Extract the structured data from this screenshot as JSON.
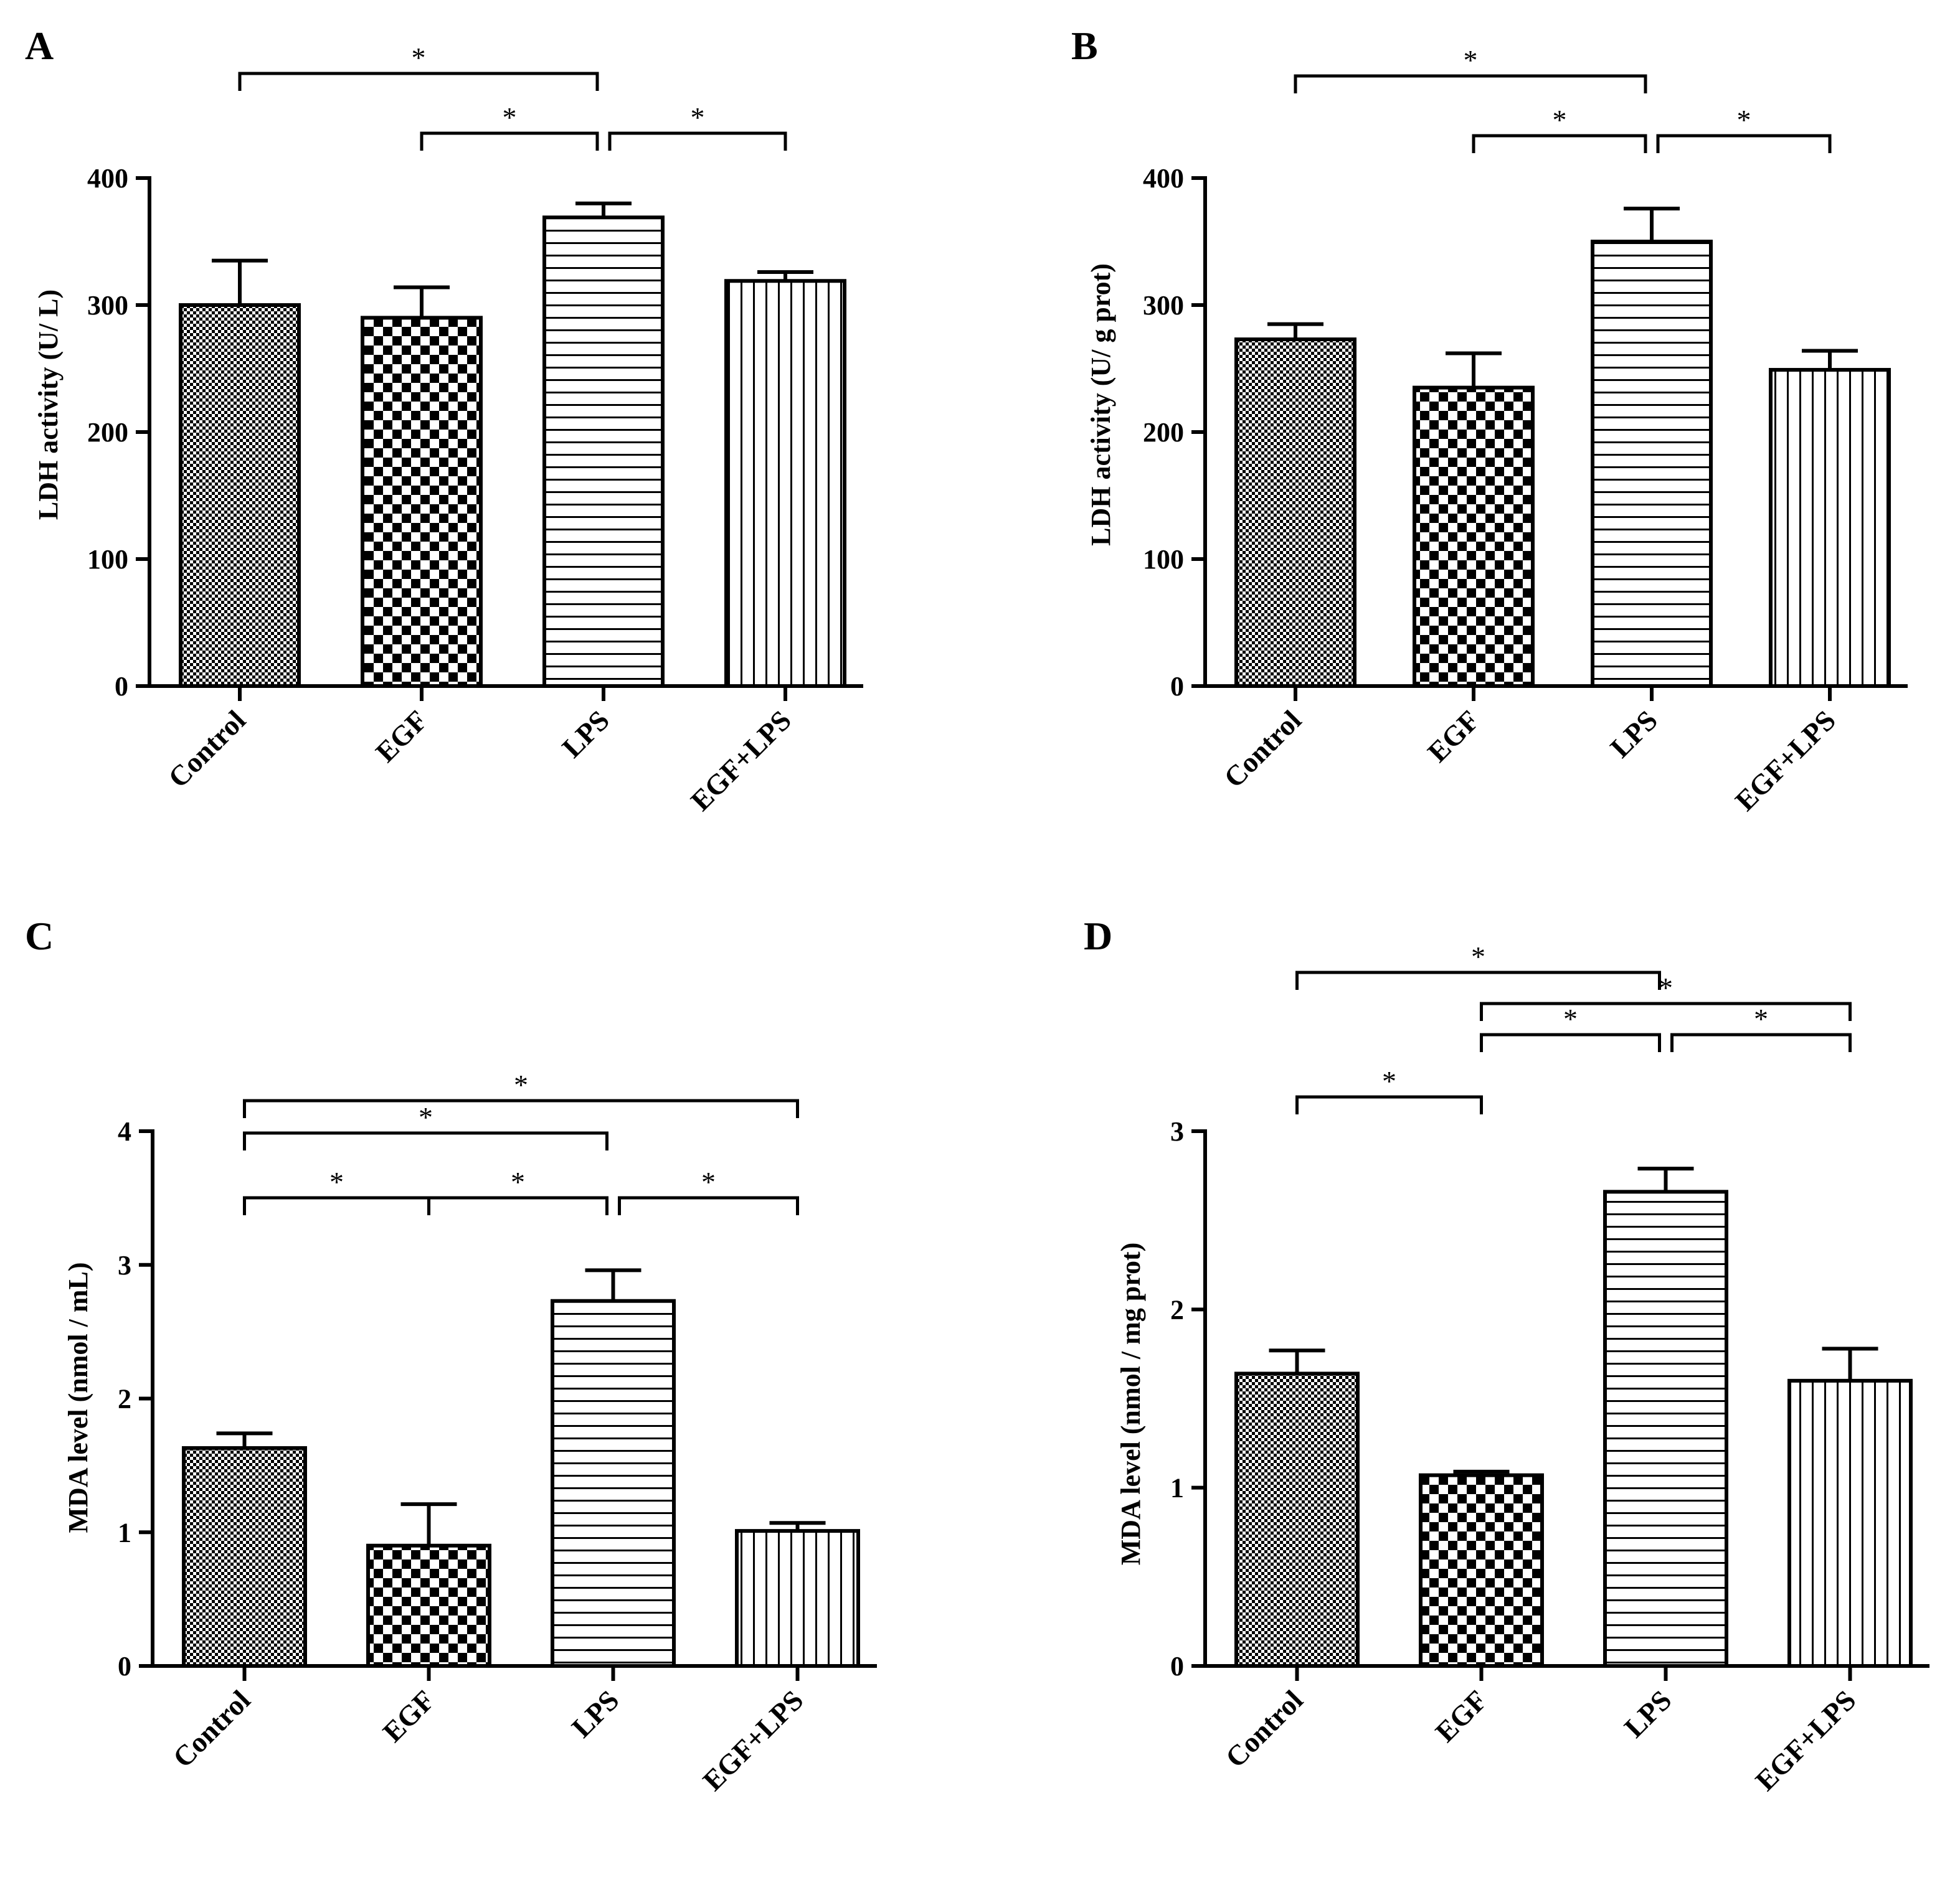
{
  "figure": {
    "panels": [
      {
        "id": "A",
        "label": "A"
      },
      {
        "id": "B",
        "label": "B"
      },
      {
        "id": "C",
        "label": "C"
      },
      {
        "id": "D",
        "label": "D"
      }
    ]
  },
  "chart_data": [
    {
      "panel": "A",
      "type": "bar",
      "title": "",
      "xlabel": "",
      "ylabel": "LDH activity (U/ L)",
      "categories": [
        "Control",
        "EGF",
        "LPS",
        "EGF+LPS"
      ],
      "values": [
        300,
        290,
        369,
        319
      ],
      "errors": [
        35,
        24,
        11,
        7
      ],
      "patterns": [
        "fine-check",
        "checker",
        "horizontal",
        "vertical"
      ],
      "ylim": [
        0,
        400
      ],
      "yticks": [
        0,
        100,
        200,
        300,
        400
      ],
      "ytick_labels": [
        "0",
        "100",
        "200",
        "300",
        "400"
      ],
      "significance": [
        {
          "from": 0,
          "to": 2,
          "label": "*",
          "level": 3
        },
        {
          "from": 1,
          "to": 2,
          "label": "*",
          "level": 1
        },
        {
          "from": 2,
          "to": 3,
          "label": "*",
          "level": 1
        }
      ]
    },
    {
      "panel": "B",
      "type": "bar",
      "title": "",
      "xlabel": "",
      "ylabel": "LDH activity (U/ g prot)",
      "categories": [
        "Control",
        "EGF",
        "LPS",
        "EGF+LPS"
      ],
      "values": [
        273,
        235,
        350,
        249
      ],
      "errors": [
        12,
        27,
        26,
        15
      ],
      "patterns": [
        "fine-check",
        "checker",
        "horizontal",
        "vertical"
      ],
      "ylim": [
        0,
        400
      ],
      "yticks": [
        0,
        100,
        200,
        300,
        400
      ],
      "ytick_labels": [
        "0",
        "100",
        "200",
        "300",
        "400"
      ],
      "significance": [
        {
          "from": 0,
          "to": 2,
          "label": "*",
          "level": 3
        },
        {
          "from": 1,
          "to": 2,
          "label": "*",
          "level": 1
        },
        {
          "from": 2,
          "to": 3,
          "label": "*",
          "level": 1
        }
      ]
    },
    {
      "panel": "C",
      "type": "bar",
      "title": "",
      "xlabel": "",
      "ylabel": "MDA level (nmol / mL)",
      "categories": [
        "Control",
        "EGF",
        "LPS",
        "EGF+LPS"
      ],
      "values": [
        1.63,
        0.9,
        2.73,
        1.01
      ],
      "errors": [
        0.11,
        0.31,
        0.23,
        0.06
      ],
      "patterns": [
        "fine-check",
        "checker",
        "horizontal",
        "vertical"
      ],
      "ylim": [
        0,
        4
      ],
      "yticks": [
        0,
        1,
        2,
        3,
        4
      ],
      "ytick_labels": [
        "0",
        "1",
        "2",
        "3",
        "4"
      ],
      "significance": [
        {
          "from": 0,
          "to": 3,
          "label": "*",
          "level": 4
        },
        {
          "from": 0,
          "to": 2,
          "label": "*",
          "level": 3
        },
        {
          "from": 1,
          "to": 2,
          "label": "*",
          "level": 1
        },
        {
          "from": 2,
          "to": 3,
          "label": "*",
          "level": 1
        },
        {
          "from": 0,
          "to": 1,
          "label": "*",
          "level": 1
        }
      ]
    },
    {
      "panel": "D",
      "type": "bar",
      "title": "",
      "xlabel": "",
      "ylabel": "MDA level (nmol / mg prot)",
      "categories": [
        "Control",
        "EGF",
        "LPS",
        "EGF+LPS"
      ],
      "values": [
        1.64,
        1.07,
        2.66,
        1.6
      ],
      "errors": [
        0.13,
        0.02,
        0.13,
        0.18
      ],
      "patterns": [
        "fine-check",
        "checker",
        "horizontal",
        "vertical"
      ],
      "ylim": [
        0,
        3
      ],
      "yticks": [
        0,
        1,
        2,
        3
      ],
      "ytick_labels": [
        "0",
        "1",
        "2",
        "3"
      ],
      "significance": [
        {
          "from": 0,
          "to": 2,
          "label": "*",
          "level": 5
        },
        {
          "from": 1,
          "to": 3,
          "label": "*",
          "level": 4
        },
        {
          "from": 1,
          "to": 2,
          "label": "*",
          "level": 3
        },
        {
          "from": 2,
          "to": 3,
          "label": "*",
          "level": 3
        },
        {
          "from": 0,
          "to": 1,
          "label": "*",
          "level": 1
        }
      ]
    }
  ]
}
